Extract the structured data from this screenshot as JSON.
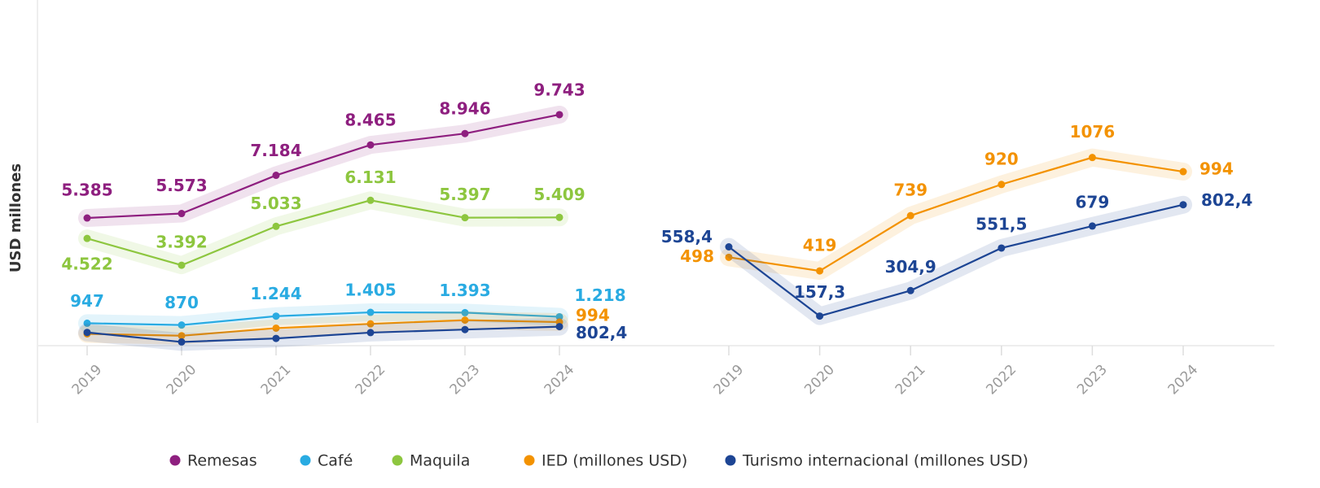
{
  "chart_data": [
    {
      "type": "line",
      "y_label": "USD millones",
      "categories": [
        "2019",
        "2020",
        "2021",
        "2022",
        "2023",
        "2024"
      ],
      "ylim": [
        0,
        13000
      ],
      "series": [
        {
          "name": "Remesas",
          "color": "#8e1f7f",
          "values": [
            5385,
            5573,
            7184,
            8465,
            8946,
            9743
          ],
          "value_labels": [
            "5.385",
            "5.573",
            "7.184",
            "8.465",
            "8.946",
            "9.743"
          ]
        },
        {
          "name": "Café",
          "color": "#29abe2",
          "values": [
            947,
            870,
            1244,
            1405,
            1393,
            1218
          ],
          "value_labels": [
            "947",
            "870",
            "1.244",
            "1.405",
            "1.393",
            "1.218"
          ]
        },
        {
          "name": "Maquila",
          "color": "#8dc63f",
          "values": [
            4522,
            3392,
            5033,
            6131,
            5397,
            5409
          ],
          "value_labels": [
            "4.522",
            "3.392",
            "5.033",
            "6.131",
            "5.397",
            "5.409"
          ]
        },
        {
          "name": "IED (millones USD)",
          "color": "#f39200",
          "values": [
            498,
            419,
            739,
            920,
            1076,
            994
          ],
          "value_labels": [
            null,
            null,
            null,
            null,
            null,
            "994"
          ]
        },
        {
          "name": "Turismo internacional (millones USD)",
          "color": "#1d4594",
          "values": [
            558.4,
            157.3,
            304.9,
            551.5,
            679,
            802.4
          ],
          "value_labels": [
            null,
            null,
            null,
            null,
            null,
            "802,4"
          ]
        }
      ]
    },
    {
      "type": "line",
      "categories": [
        "2019",
        "2020",
        "2021",
        "2022",
        "2023",
        "2024"
      ],
      "ylim": [
        0,
        1800
      ],
      "series": [
        {
          "color": "#f39200",
          "values": [
            498,
            419,
            739,
            920,
            1076,
            994
          ],
          "value_labels": [
            "498",
            "419",
            "739",
            "920",
            "1076",
            "994"
          ]
        },
        {
          "color": "#1d4594",
          "values": [
            558.4,
            157.3,
            304.9,
            551.5,
            679,
            802.4
          ],
          "value_labels": [
            "558,4",
            "157,3",
            "304,9",
            "551,5",
            "679",
            "802,4"
          ]
        }
      ]
    }
  ]
}
